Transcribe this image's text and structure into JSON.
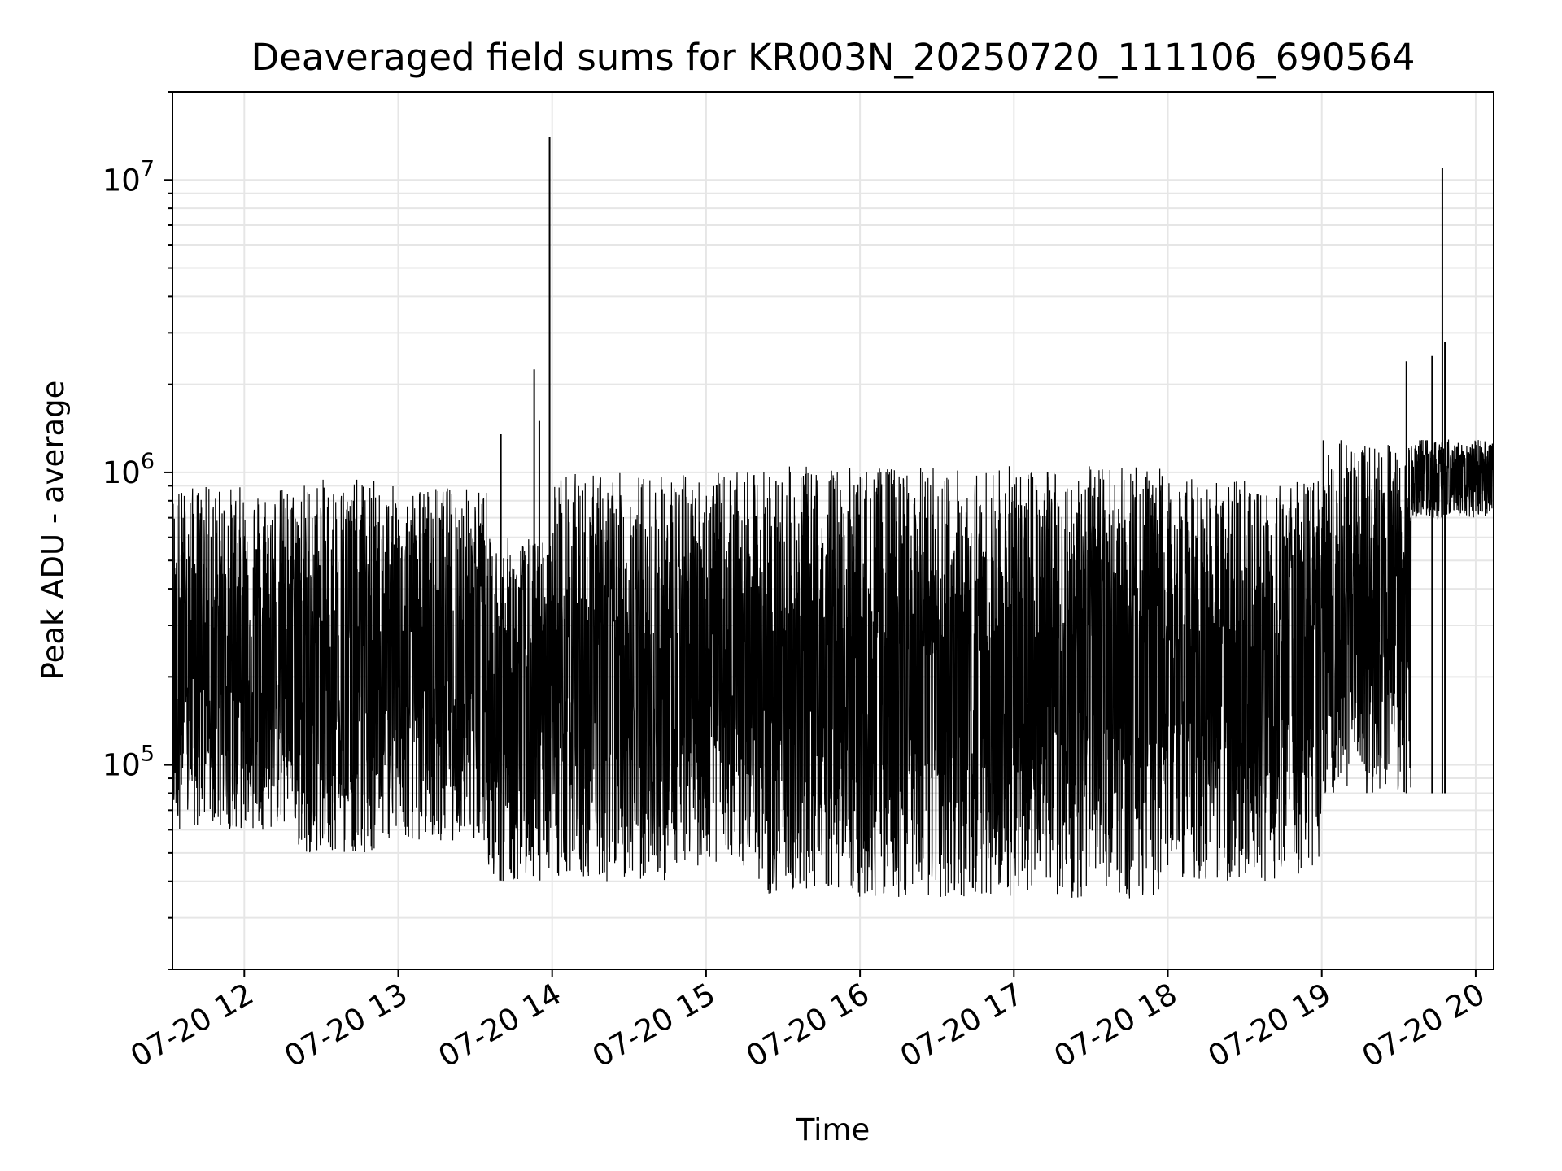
{
  "chart_data": {
    "type": "line",
    "title": "Deaveraged field sums for KR003N_20250720_111106_690564",
    "xlabel": "Time",
    "ylabel": "Peak ADU - average",
    "yscale": "log",
    "ylim": [
      20000,
      20000000
    ],
    "xlim": [
      "07-20 11:32",
      "07-20 20:07"
    ],
    "grid": true,
    "line_color": "#000000",
    "grid_color": "#e6e6e6",
    "x_ticks": [
      {
        "t": "07-20 12:00",
        "label": "07-20 12"
      },
      {
        "t": "07-20 13:00",
        "label": "07-20 13"
      },
      {
        "t": "07-20 14:00",
        "label": "07-20 14"
      },
      {
        "t": "07-20 15:00",
        "label": "07-20 15"
      },
      {
        "t": "07-20 16:00",
        "label": "07-20 16"
      },
      {
        "t": "07-20 17:00",
        "label": "07-20 17"
      },
      {
        "t": "07-20 18:00",
        "label": "07-20 18"
      },
      {
        "t": "07-20 19:00",
        "label": "07-20 19"
      },
      {
        "t": "07-20 20:00",
        "label": "07-20 20"
      }
    ],
    "y_ticks": [
      {
        "value": 100000,
        "base": "10",
        "exp": "5"
      },
      {
        "value": 1000000,
        "base": "10",
        "exp": "6"
      },
      {
        "value": 10000000,
        "base": "10",
        "exp": "7"
      }
    ],
    "segments": [
      {
        "start": "07-20 11:32",
        "end": "07-20 12:20",
        "high": 900000,
        "low": 60000
      },
      {
        "start": "07-20 12:20",
        "end": "07-20 12:52",
        "high": 950000,
        "low": 50000
      },
      {
        "start": "07-20 12:52",
        "end": "07-20 13:35",
        "high": 900000,
        "low": 55000
      },
      {
        "start": "07-20 13:35",
        "end": "07-20 14:00",
        "high": 600000,
        "low": 40000
      },
      {
        "start": "07-20 14:00",
        "end": "07-20 14:45",
        "high": 1000000,
        "low": 40000
      },
      {
        "start": "07-20 14:45",
        "end": "07-20 15:20",
        "high": 1000000,
        "low": 45000
      },
      {
        "start": "07-20 15:20",
        "end": "07-20 16:30",
        "high": 1050000,
        "low": 35000
      },
      {
        "start": "07-20 16:30",
        "end": "07-20 18:00",
        "high": 1050000,
        "low": 35000
      },
      {
        "start": "07-20 18:00",
        "end": "07-20 19:00",
        "high": 950000,
        "low": 40000
      },
      {
        "start": "07-20 19:00",
        "end": "07-20 19:35",
        "high": 1300000,
        "low": 80000
      },
      {
        "start": "07-20 19:35",
        "end": "07-20 20:07",
        "high": 1300000,
        "low": 700000
      }
    ],
    "spikes": [
      {
        "t": "07-20 13:40",
        "value": 1350000
      },
      {
        "t": "07-20 13:53",
        "value": 2250000
      },
      {
        "t": "07-20 13:55",
        "value": 1500000
      },
      {
        "t": "07-20 13:59",
        "value": 14000000
      },
      {
        "t": "07-20 19:33",
        "value": 2400000
      },
      {
        "t": "07-20 19:47",
        "value": 11000000
      },
      {
        "t": "07-20 19:48",
        "value": 2800000
      },
      {
        "t": "07-20 19:43",
        "value": 2500000
      }
    ]
  }
}
